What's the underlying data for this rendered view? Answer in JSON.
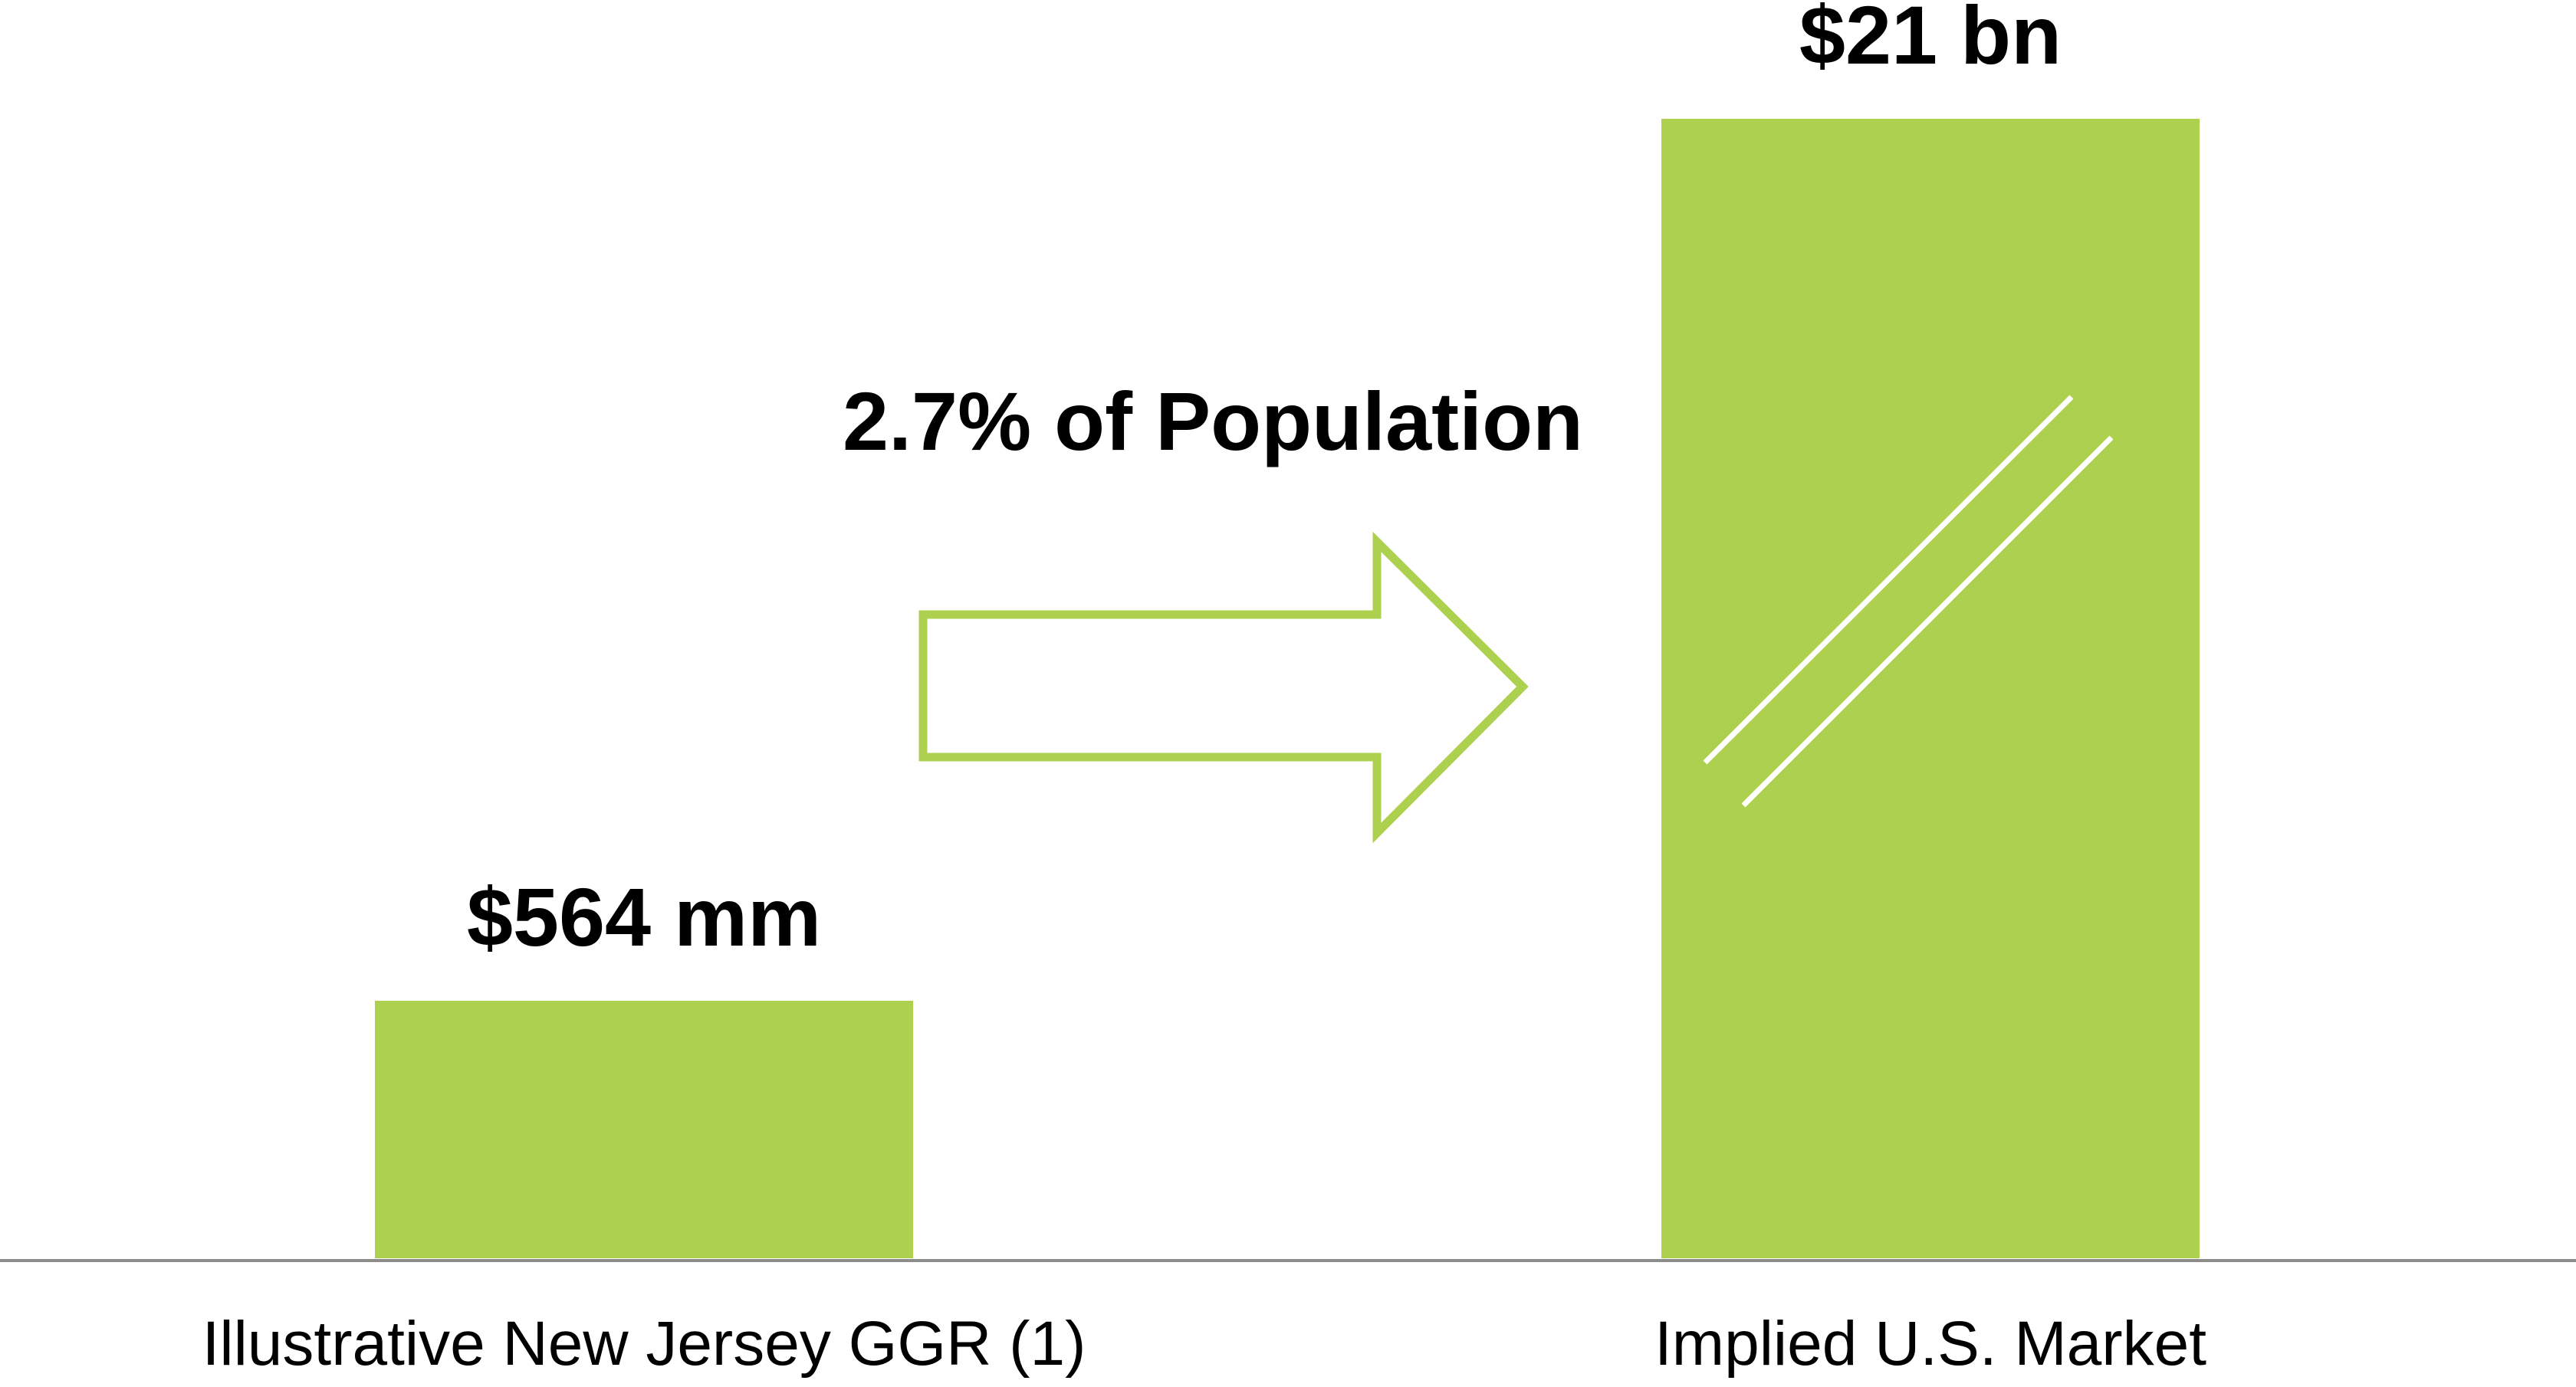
{
  "chart_data": {
    "type": "bar",
    "categories": [
      "Illustrative New Jersey GGR (1)",
      "Implied U.S. Market"
    ],
    "values": [
      0.564,
      21
    ],
    "value_unit": "billion USD",
    "data_labels": [
      "$564 mm",
      "$21 bn"
    ],
    "axis_break_on": "Implied U.S. Market",
    "annotation": "2.7% of Population",
    "title": "",
    "xlabel": "",
    "ylabel": "",
    "grid": false,
    "legend": "none"
  },
  "colors": {
    "bar": "#AED04F",
    "arrow_stroke": "#AED04F",
    "axis": "#8C8C8C",
    "break_lines": "#FFFFFF",
    "text": "#000000"
  }
}
